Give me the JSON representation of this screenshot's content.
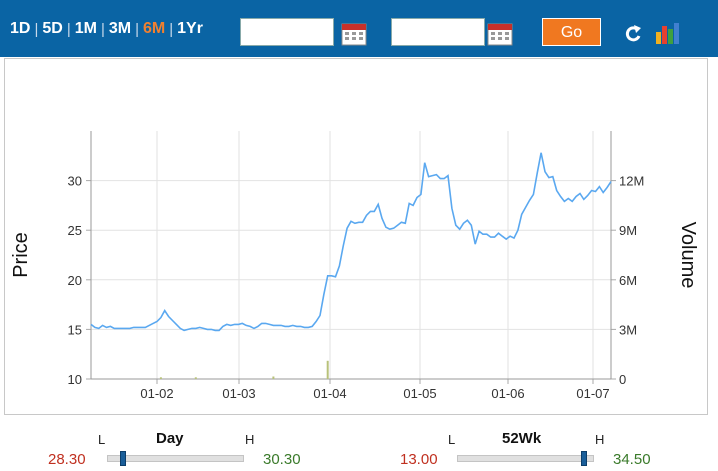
{
  "toolbar": {
    "ranges": [
      "1D",
      "5D",
      "1M",
      "3M",
      "6M",
      "1Yr"
    ],
    "active_range": "6M",
    "start_date": "",
    "end_date": "",
    "go_label": "Go",
    "refresh_icon": "refresh-icon",
    "chart_type_icon": "bar-chart-icon",
    "calendar_icon": "calendar-icon"
  },
  "colors": {
    "toolbar_bg": "#0a64a4",
    "active_range": "#f08030",
    "go_button": "#f07820",
    "price_line": "#5aa8f0",
    "volume_bar": "#b8c27a",
    "low_value": "#c03020",
    "high_value": "#3a7a2a"
  },
  "chart_data": {
    "type": "line",
    "ylabel_left": "Price",
    "ylabel_right": "Volume",
    "x_ticks": [
      "01-02",
      "01-03",
      "01-04",
      "01-05",
      "01-06",
      "01-07"
    ],
    "y_left_ticks": [
      "10",
      "15",
      "20",
      "25",
      "30"
    ],
    "y_left_range": [
      10,
      35
    ],
    "y_right_ticks": [
      "0",
      "3M",
      "6M",
      "9M",
      "12M"
    ],
    "y_right_range": [
      0,
      15000000
    ],
    "grid": true,
    "series": [
      {
        "kind": "line",
        "axis": "left",
        "values": [
          15.5,
          15.2,
          15.1,
          15.4,
          15.2,
          15.3,
          15.1,
          15.1,
          15.1,
          15.1,
          15.1,
          15.2,
          15.2,
          15.2,
          15.2,
          15.4,
          15.6,
          15.8,
          16.2,
          16.9,
          16.3,
          15.9,
          15.5,
          15.1,
          14.9,
          15.0,
          15.1,
          15.1,
          15.2,
          15.1,
          15.0,
          15.0,
          14.9,
          14.9,
          15.3,
          15.5,
          15.4,
          15.5,
          15.5,
          15.6,
          15.4,
          15.3,
          15.1,
          15.3,
          15.6,
          15.6,
          15.5,
          15.4,
          15.4,
          15.4,
          15.3,
          15.3,
          15.4,
          15.3,
          15.3,
          15.2,
          15.2,
          15.3,
          15.8,
          16.4,
          18.5,
          20.4,
          20.4,
          20.3,
          21.4,
          23.4,
          25.2,
          25.9,
          25.7,
          25.8,
          25.8,
          26.5,
          26.9,
          26.9,
          27.6,
          26.2,
          25.3,
          25.1,
          25.2,
          25.5,
          25.8,
          25.7,
          27.7,
          27.5,
          28.3,
          28.6,
          31.8,
          30.4,
          30.5,
          30.6,
          30.2,
          30.2,
          30.5,
          27.2,
          25.5,
          25.1,
          25.7,
          26.0,
          25.5,
          23.6,
          24.9,
          24.6,
          24.6,
          24.3,
          24.3,
          24.7,
          24.4,
          24.1,
          24.4,
          24.2,
          25.0,
          26.6,
          27.3,
          28.0,
          28.6,
          30.8,
          32.8,
          30.9,
          30.3,
          30.4,
          29.0,
          28.4,
          27.9,
          28.2,
          27.9,
          28.4,
          28.7,
          28.1,
          28.5,
          29.0,
          28.9,
          29.4,
          28.8,
          29.3,
          29.9
        ]
      },
      {
        "kind": "bar",
        "axis": "right",
        "values": [
          0,
          0,
          0,
          0,
          0,
          0,
          0,
          0,
          0,
          0,
          0,
          0,
          0,
          0,
          0,
          0,
          0,
          0,
          100000,
          0,
          0,
          0,
          0,
          0,
          0,
          0,
          0,
          100000,
          0,
          0,
          0,
          0,
          0,
          0,
          0,
          0,
          0,
          0,
          0,
          0,
          0,
          0,
          0,
          0,
          0,
          0,
          0,
          150000,
          0,
          0,
          0,
          0,
          0,
          0,
          0,
          0,
          0,
          0,
          0,
          0,
          0,
          1100000,
          0,
          0,
          0,
          0,
          0,
          0,
          0,
          0,
          0,
          0,
          0,
          0,
          0,
          0,
          0,
          0,
          0,
          0,
          0,
          0,
          0,
          0,
          0,
          0,
          0,
          0,
          0,
          0,
          0,
          0,
          0,
          0,
          0,
          0,
          0,
          0,
          0,
          0,
          0,
          0,
          0,
          0,
          0,
          0,
          0,
          0,
          0,
          0,
          0,
          0,
          0,
          0,
          0,
          0,
          0,
          0,
          0,
          0,
          0,
          0,
          0,
          0,
          0,
          0,
          0,
          0,
          0,
          0,
          0,
          0,
          0,
          0
        ]
      }
    ]
  },
  "day_range": {
    "title": "Day",
    "low_marker": "L",
    "high_marker": "H",
    "low": "28.30",
    "high": "30.30",
    "position": 0.12
  },
  "week52_range": {
    "title": "52Wk",
    "low_marker": "L",
    "high_marker": "H",
    "low": "13.00",
    "high": "34.50",
    "position": 0.93
  }
}
